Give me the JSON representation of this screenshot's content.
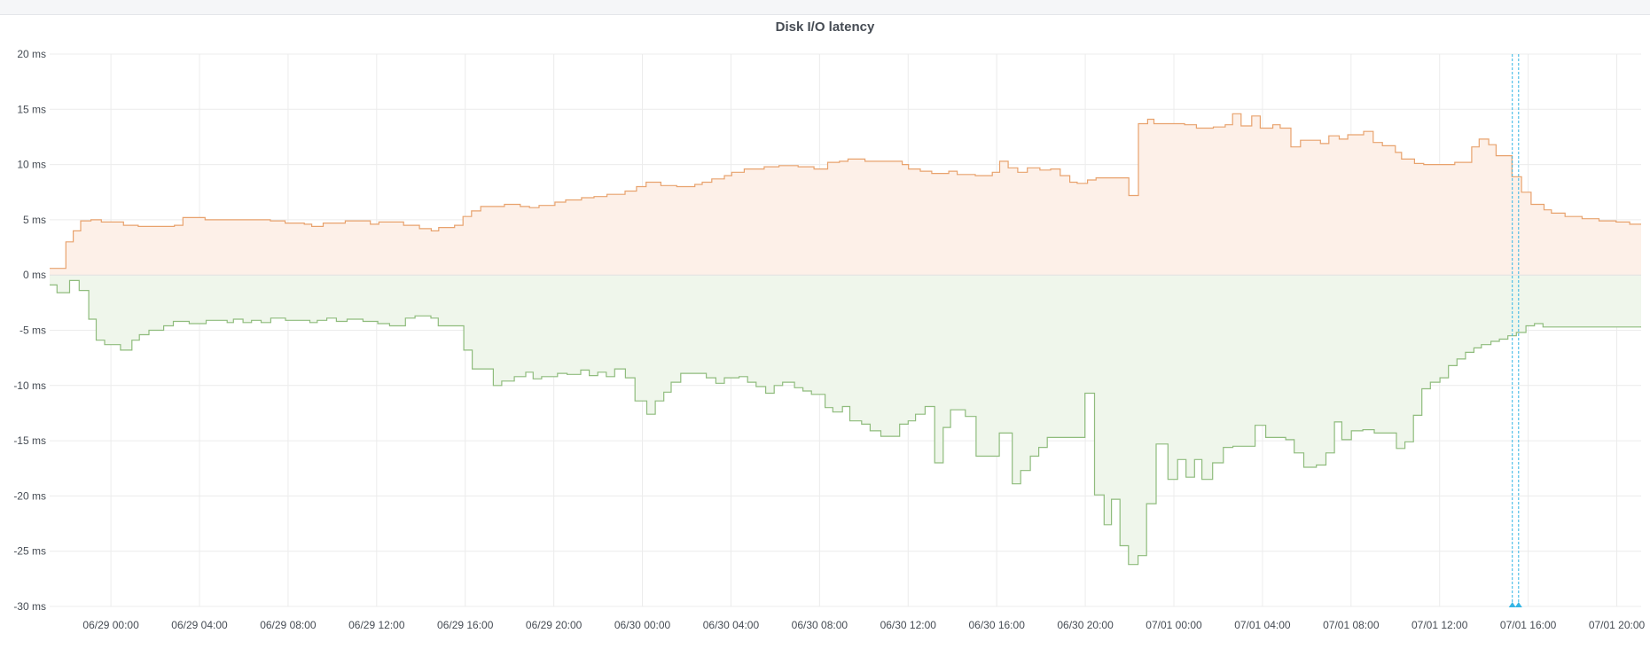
{
  "panel": {
    "title": "Disk I/O latency"
  },
  "chart_data": {
    "type": "area",
    "title": "Disk I/O latency",
    "xlabel": "",
    "ylabel": "",
    "y_unit": "ms",
    "ylim": [
      -30,
      20
    ],
    "y_ticks": [
      20,
      15,
      10,
      5,
      0,
      -5,
      -10,
      -15,
      -20,
      -25,
      -30
    ],
    "y_tick_labels": [
      "20 ms",
      "15 ms",
      "10 ms",
      "5 ms",
      "0 ms",
      "-5 ms",
      "-10 ms",
      "-15 ms",
      "-20 ms",
      "-25 ms",
      "-30 ms"
    ],
    "xlim": [
      "06/28 21:14",
      "07/01 21:06"
    ],
    "x_ticks": [
      "06/29 00:00",
      "06/29 04:00",
      "06/29 08:00",
      "06/29 12:00",
      "06/29 16:00",
      "06/29 20:00",
      "06/30 00:00",
      "06/30 04:00",
      "06/30 08:00",
      "06/30 12:00",
      "06/30 16:00",
      "06/30 20:00",
      "07/01 00:00",
      "07/01 04:00",
      "07/01 08:00",
      "07/01 12:00",
      "07/01 16:00",
      "07/01 20:00"
    ],
    "x_tick_labels": [
      "06/29 00:00",
      "06/29 04:00",
      "06/29 08:00",
      "06/29 12:00",
      "06/29 16:00",
      "06/29 20:00",
      "06/30 00:00",
      "06/30 04:00",
      "06/30 08:00",
      "06/30 12:00",
      "06/30 16:00",
      "06/30 20:00",
      "07/01 00:00",
      "07/01 04:00",
      "07/01 08:00",
      "07/01 12:00",
      "07/01 16:00",
      "07/01 20:00"
    ],
    "grid": true,
    "legend": "none",
    "series": [
      {
        "color": "#e8a26d",
        "fill": "#fdf0e8",
        "steps": [
          [
            "06/28 21:14",
            0.6
          ],
          [
            "06/28 21:58",
            3.0
          ],
          [
            "06/28 22:18",
            4.0
          ],
          [
            "06/28 22:38",
            4.9
          ],
          [
            "06/28 23:06",
            5.0
          ],
          [
            "06/28 23:34",
            4.8
          ],
          [
            "06/29 00:34",
            4.5
          ],
          [
            "06/29 01:14",
            4.4
          ],
          [
            "06/29 02:52",
            4.5
          ],
          [
            "06/29 03:15",
            5.2
          ],
          [
            "06/29 04:15",
            5.0
          ],
          [
            "06/29 06:15",
            5.0
          ],
          [
            "06/29 07:12",
            4.9
          ],
          [
            "06/29 07:52",
            4.7
          ],
          [
            "06/29 08:44",
            4.6
          ],
          [
            "06/29 09:04",
            4.4
          ],
          [
            "06/29 09:35",
            4.7
          ],
          [
            "06/29 10:35",
            4.9
          ],
          [
            "06/29 11:43",
            4.6
          ],
          [
            "06/29 12:06",
            4.8
          ],
          [
            "06/29 13:13",
            4.5
          ],
          [
            "06/29 13:56",
            4.2
          ],
          [
            "06/29 14:28",
            4.0
          ],
          [
            "06/29 14:48",
            4.3
          ],
          [
            "06/29 15:31",
            4.5
          ],
          [
            "06/29 15:54",
            5.3
          ],
          [
            "06/29 16:17",
            5.8
          ],
          [
            "06/29 16:42",
            6.2
          ],
          [
            "06/29 17:46",
            6.4
          ],
          [
            "06/29 18:29",
            6.2
          ],
          [
            "06/29 18:54",
            6.1
          ],
          [
            "06/29 19:20",
            6.3
          ],
          [
            "06/29 20:03",
            6.6
          ],
          [
            "06/29 20:32",
            6.8
          ],
          [
            "06/29 21:15",
            7.0
          ],
          [
            "06/29 21:49",
            7.1
          ],
          [
            "06/29 22:24",
            7.3
          ],
          [
            "06/29 23:13",
            7.6
          ],
          [
            "06/29 23:44",
            8.0
          ],
          [
            "06/30 00:10",
            8.4
          ],
          [
            "06/30 00:50",
            8.1
          ],
          [
            "06/30 01:33",
            8.0
          ],
          [
            "06/30 02:22",
            8.2
          ],
          [
            "06/30 02:42",
            8.4
          ],
          [
            "06/30 03:08",
            8.7
          ],
          [
            "06/30 03:42",
            9.0
          ],
          [
            "06/30 04:02",
            9.3
          ],
          [
            "06/30 04:36",
            9.6
          ],
          [
            "06/30 05:30",
            9.8
          ],
          [
            "06/30 06:10",
            9.9
          ],
          [
            "06/30 07:02",
            9.8
          ],
          [
            "06/30 07:45",
            9.6
          ],
          [
            "06/30 08:22",
            10.2
          ],
          [
            "06/30 08:54",
            10.3
          ],
          [
            "06/30 09:17",
            10.5
          ],
          [
            "06/30 10:03",
            10.3
          ],
          [
            "06/30 10:52",
            10.3
          ],
          [
            "06/30 11:44",
            10.0
          ],
          [
            "06/30 12:01",
            9.6
          ],
          [
            "06/30 12:33",
            9.4
          ],
          [
            "06/30 13:04",
            9.2
          ],
          [
            "06/30 13:50",
            9.4
          ],
          [
            "06/30 14:13",
            9.1
          ],
          [
            "06/30 15:02",
            9.0
          ],
          [
            "06/30 15:48",
            9.3
          ],
          [
            "06/30 16:08",
            10.3
          ],
          [
            "06/30 16:31",
            9.7
          ],
          [
            "06/30 16:57",
            9.3
          ],
          [
            "06/30 17:23",
            9.7
          ],
          [
            "06/30 17:57",
            9.5
          ],
          [
            "06/30 18:26",
            9.6
          ],
          [
            "06/30 18:52",
            9.0
          ],
          [
            "06/30 19:18",
            8.4
          ],
          [
            "06/30 19:38",
            8.3
          ],
          [
            "06/30 20:06",
            8.6
          ],
          [
            "06/30 20:29",
            8.8
          ],
          [
            "06/30 21:58",
            7.2
          ],
          [
            "06/30 22:24",
            13.7
          ],
          [
            "06/30 22:49",
            14.1
          ],
          [
            "06/30 23:06",
            13.7
          ],
          [
            "07/01 00:29",
            13.6
          ],
          [
            "07/01 01:01",
            13.3
          ],
          [
            "07/01 01:47",
            13.4
          ],
          [
            "07/01 02:19",
            13.6
          ],
          [
            "07/01 02:39",
            14.6
          ],
          [
            "07/01 03:02",
            13.5
          ],
          [
            "07/01 03:31",
            14.4
          ],
          [
            "07/01 03:54",
            13.3
          ],
          [
            "07/01 04:28",
            13.6
          ],
          [
            "07/01 04:48",
            13.3
          ],
          [
            "07/01 05:17",
            11.6
          ],
          [
            "07/01 05:43",
            12.2
          ],
          [
            "07/01 06:37",
            11.9
          ],
          [
            "07/01 07:00",
            12.6
          ],
          [
            "07/01 07:28",
            12.3
          ],
          [
            "07/01 07:51",
            12.7
          ],
          [
            "07/01 08:34",
            13.0
          ],
          [
            "07/01 09:00",
            12.0
          ],
          [
            "07/01 09:25",
            11.7
          ],
          [
            "07/01 10:00",
            11.1
          ],
          [
            "07/01 10:17",
            10.5
          ],
          [
            "07/01 10:52",
            10.1
          ],
          [
            "07/01 11:17",
            10.0
          ],
          [
            "07/01 12:41",
            10.2
          ],
          [
            "07/01 13:27",
            11.6
          ],
          [
            "07/01 13:47",
            12.3
          ],
          [
            "07/01 14:13",
            11.8
          ],
          [
            "07/01 14:33",
            10.8
          ],
          [
            "07/01 15:16",
            8.9
          ],
          [
            "07/01 15:42",
            7.5
          ],
          [
            "07/01 16:08",
            6.4
          ],
          [
            "07/01 16:43",
            5.9
          ],
          [
            "07/01 17:03",
            5.6
          ],
          [
            "07/01 17:40",
            5.3
          ],
          [
            "07/01 18:26",
            5.1
          ],
          [
            "07/01 19:12",
            4.9
          ],
          [
            "07/01 19:58",
            4.8
          ],
          [
            "07/01 20:35",
            4.6
          ],
          [
            "07/01 21:06",
            4.6
          ]
        ]
      },
      {
        "color": "#8fbc7d",
        "fill": "#eff6eb",
        "steps": [
          [
            "06/28 21:14",
            -0.9
          ],
          [
            "06/28 21:34",
            -1.6
          ],
          [
            "06/28 22:08",
            -0.5
          ],
          [
            "06/28 22:34",
            -1.4
          ],
          [
            "06/28 23:00",
            -4.0
          ],
          [
            "06/28 23:20",
            -5.9
          ],
          [
            "06/28 23:43",
            -6.3
          ],
          [
            "06/29 00:26",
            -6.8
          ],
          [
            "06/29 00:57",
            -5.9
          ],
          [
            "06/29 01:17",
            -5.4
          ],
          [
            "06/29 01:43",
            -5.0
          ],
          [
            "06/29 02:23",
            -4.6
          ],
          [
            "06/29 02:49",
            -4.2
          ],
          [
            "06/29 03:32",
            -4.4
          ],
          [
            "06/29 04:18",
            -4.1
          ],
          [
            "06/29 05:15",
            -4.3
          ],
          [
            "06/29 05:32",
            -4.0
          ],
          [
            "06/29 05:58",
            -4.3
          ],
          [
            "06/29 06:21",
            -4.1
          ],
          [
            "06/29 06:47",
            -4.3
          ],
          [
            "06/29 07:13",
            -3.9
          ],
          [
            "06/29 07:53",
            -4.1
          ],
          [
            "06/29 08:59",
            -4.3
          ],
          [
            "06/29 09:19",
            -4.1
          ],
          [
            "06/29 09:45",
            -3.9
          ],
          [
            "06/29 10:11",
            -4.2
          ],
          [
            "06/29 10:40",
            -4.0
          ],
          [
            "06/29 11:23",
            -4.2
          ],
          [
            "06/29 12:03",
            -4.4
          ],
          [
            "06/29 12:35",
            -4.6
          ],
          [
            "06/29 13:18",
            -3.9
          ],
          [
            "06/29 13:44",
            -3.7
          ],
          [
            "06/29 14:27",
            -3.9
          ],
          [
            "06/29 14:47",
            -4.6
          ],
          [
            "06/29 15:56",
            -6.8
          ],
          [
            "06/29 16:19",
            -8.5
          ],
          [
            "06/29 17:16",
            -10.0
          ],
          [
            "06/29 17:39",
            -9.6
          ],
          [
            "06/29 18:13",
            -9.2
          ],
          [
            "06/29 18:44",
            -8.8
          ],
          [
            "06/29 19:04",
            -9.4
          ],
          [
            "06/29 19:27",
            -9.2
          ],
          [
            "06/29 20:10",
            -8.9
          ],
          [
            "06/29 20:36",
            -9.0
          ],
          [
            "06/29 21:13",
            -8.6
          ],
          [
            "06/29 21:36",
            -9.1
          ],
          [
            "06/29 21:59",
            -8.8
          ],
          [
            "06/29 22:22",
            -9.2
          ],
          [
            "06/29 22:45",
            -8.5
          ],
          [
            "06/29 23:14",
            -9.3
          ],
          [
            "06/29 23:40",
            -11.4
          ],
          [
            "06/30 00:12",
            -12.6
          ],
          [
            "06/30 00:35",
            -11.4
          ],
          [
            "06/30 00:58",
            -10.6
          ],
          [
            "06/30 01:18",
            -9.7
          ],
          [
            "06/30 01:44",
            -8.9
          ],
          [
            "06/30 02:53",
            -9.3
          ],
          [
            "06/30 03:19",
            -9.8
          ],
          [
            "06/30 03:42",
            -9.3
          ],
          [
            "06/30 04:22",
            -9.2
          ],
          [
            "06/30 04:45",
            -9.7
          ],
          [
            "06/30 05:08",
            -10.1
          ],
          [
            "06/30 05:34",
            -10.7
          ],
          [
            "06/30 05:57",
            -10.0
          ],
          [
            "06/30 06:20",
            -9.7
          ],
          [
            "06/30 06:52",
            -10.2
          ],
          [
            "06/30 07:15",
            -10.5
          ],
          [
            "06/30 07:38",
            -10.8
          ],
          [
            "06/30 08:15",
            -12.0
          ],
          [
            "06/30 08:36",
            -12.4
          ],
          [
            "06/30 09:02",
            -11.9
          ],
          [
            "06/30 09:22",
            -13.2
          ],
          [
            "06/30 09:54",
            -13.5
          ],
          [
            "06/30 10:17",
            -14.1
          ],
          [
            "06/30 10:46",
            -14.6
          ],
          [
            "06/30 11:37",
            -13.5
          ],
          [
            "06/30 12:00",
            -13.2
          ],
          [
            "06/30 12:20",
            -12.6
          ],
          [
            "06/30 12:46",
            -11.9
          ],
          [
            "06/30 13:12",
            -17.0
          ],
          [
            "06/30 13:35",
            -13.8
          ],
          [
            "06/30 13:55",
            -12.2
          ],
          [
            "06/30 14:35",
            -12.8
          ],
          [
            "06/30 15:04",
            -16.4
          ],
          [
            "06/30 16:07",
            -14.3
          ],
          [
            "06/30 16:42",
            -18.9
          ],
          [
            "06/30 17:05",
            -17.7
          ],
          [
            "06/30 17:31",
            -16.4
          ],
          [
            "06/30 17:54",
            -15.6
          ],
          [
            "06/30 18:17",
            -14.7
          ],
          [
            "06/30 19:59",
            -10.7
          ],
          [
            "06/30 20:25",
            -19.9
          ],
          [
            "06/30 20:51",
            -22.6
          ],
          [
            "06/30 21:11",
            -20.3
          ],
          [
            "06/30 21:34",
            -24.5
          ],
          [
            "06/30 21:57",
            -26.2
          ],
          [
            "06/30 22:23",
            -25.4
          ],
          [
            "06/30 22:46",
            -20.7
          ],
          [
            "06/30 23:12",
            -15.3
          ],
          [
            "06/30 23:44",
            -18.5
          ],
          [
            "07/01 00:10",
            -16.7
          ],
          [
            "07/01 00:33",
            -18.3
          ],
          [
            "07/01 00:56",
            -16.7
          ],
          [
            "07/01 01:16",
            -18.5
          ],
          [
            "07/01 01:45",
            -17.0
          ],
          [
            "07/01 02:14",
            -15.6
          ],
          [
            "07/01 02:40",
            -15.5
          ],
          [
            "07/01 03:40",
            -13.6
          ],
          [
            "07/01 04:09",
            -14.7
          ],
          [
            "07/01 05:03",
            -14.9
          ],
          [
            "07/01 05:26",
            -16.1
          ],
          [
            "07/01 05:52",
            -17.4
          ],
          [
            "07/01 06:26",
            -17.2
          ],
          [
            "07/01 06:52",
            -16.1
          ],
          [
            "07/01 07:15",
            -13.3
          ],
          [
            "07/01 07:35",
            -14.9
          ],
          [
            "07/01 08:01",
            -14.1
          ],
          [
            "07/01 08:32",
            -14.0
          ],
          [
            "07/01 09:03",
            -14.3
          ],
          [
            "07/01 10:03",
            -15.7
          ],
          [
            "07/01 10:26",
            -15.1
          ],
          [
            "07/01 10:49",
            -12.7
          ],
          [
            "07/01 11:12",
            -10.3
          ],
          [
            "07/01 11:35",
            -9.7
          ],
          [
            "07/01 12:01",
            -9.3
          ],
          [
            "07/01 12:24",
            -8.2
          ],
          [
            "07/01 12:47",
            -7.6
          ],
          [
            "07/01 13:10",
            -7.0
          ],
          [
            "07/01 13:33",
            -6.6
          ],
          [
            "07/01 13:53",
            -6.3
          ],
          [
            "07/01 14:19",
            -6.0
          ],
          [
            "07/01 14:42",
            -5.8
          ],
          [
            "07/01 15:05",
            -5.5
          ],
          [
            "07/01 15:28",
            -5.2
          ],
          [
            "07/01 15:54",
            -4.6
          ],
          [
            "07/01 16:17",
            -4.4
          ],
          [
            "07/01 16:40",
            -4.7
          ],
          [
            "07/01 21:06",
            -4.7
          ]
        ]
      }
    ],
    "cursor_lines": [
      "07/01 15:17",
      "07/01 15:34"
    ],
    "colors": {
      "grid": "#ececec",
      "axis_text": "#464c54",
      "cursor": "#33b5e5"
    }
  }
}
